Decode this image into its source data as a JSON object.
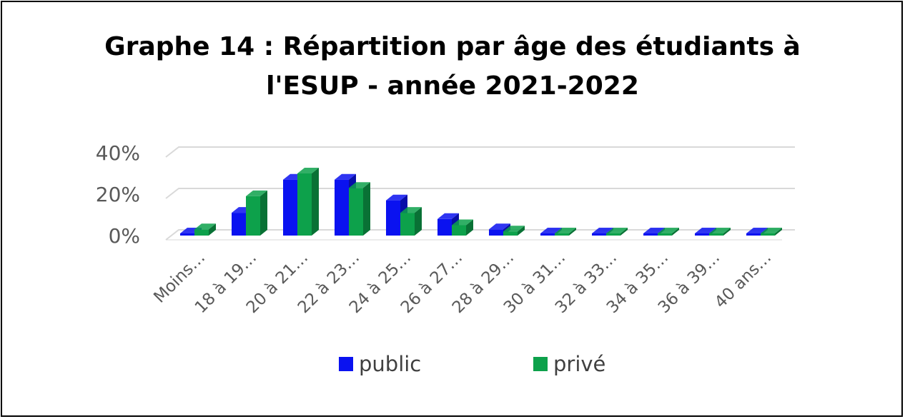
{
  "chart_data": {
    "type": "bar",
    "title_lines": [
      "Graphe 14 : Répartition par âge des étudiants à",
      "l'ESUP - année 2021-2022"
    ],
    "categories": [
      "Moins…",
      "18 à 19…",
      "20 à 21…",
      "22 à 23…",
      "24 à 25…",
      "26 à 27…",
      "28 à 29…",
      "30 à 31…",
      "32 à 33…",
      "34 à 35…",
      "36 à 39…",
      "40 ans…"
    ],
    "series": [
      {
        "name": "public",
        "color": "#0a12f0",
        "values": [
          1,
          11,
          27,
          27,
          17,
          8,
          3,
          1,
          0.5,
          0.5,
          0.5,
          0.5
        ]
      },
      {
        "name": "privé",
        "color": "#0da14b",
        "values": [
          3,
          19,
          30,
          23,
          11,
          5,
          2,
          1,
          0.5,
          0.5,
          0.5,
          0.5
        ]
      }
    ],
    "yticks": [
      "0%",
      "20%",
      "40%"
    ],
    "ylim": [
      0,
      40
    ],
    "grid": true,
    "legend_position": "bottom",
    "style": "3d-clustered-column"
  }
}
